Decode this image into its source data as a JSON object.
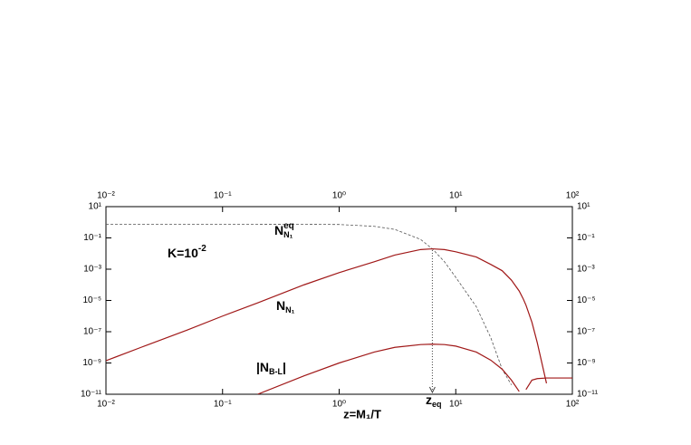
{
  "chart_data": {
    "type": "line",
    "x_label": "z=M₁/T",
    "log_x": true,
    "log_y": true,
    "xlim": [
      0.01,
      100
    ],
    "ylim": [
      1e-11,
      10
    ],
    "xticks": [
      {
        "value": 0.01,
        "label": "10⁻²"
      },
      {
        "value": 0.1,
        "label": "10⁻¹"
      },
      {
        "value": 1,
        "label": "10⁰"
      },
      {
        "value": 10,
        "label": "10¹"
      },
      {
        "value": 100,
        "label": "10²"
      }
    ],
    "yticks": [
      {
        "value": 10,
        "label": "10¹"
      },
      {
        "value": 0.1,
        "label": "10⁻¹"
      },
      {
        "value": 0.001,
        "label": "10⁻³"
      },
      {
        "value": 1e-05,
        "label": "10⁻⁵"
      },
      {
        "value": 1e-07,
        "label": "10⁻⁷"
      },
      {
        "value": 1e-09,
        "label": "10⁻⁹"
      },
      {
        "value": 1e-11,
        "label": "10⁻¹¹"
      }
    ],
    "x": [
      0.01,
      0.02,
      0.05,
      0.1,
      0.2,
      0.5,
      1,
      2,
      3,
      5,
      6.3,
      8,
      10,
      15,
      20,
      25,
      30,
      35,
      38,
      40,
      45,
      50,
      60,
      70,
      100
    ],
    "series": [
      {
        "name": "N_N1^eq",
        "color": "#555555",
        "dash": true,
        "values": [
          0.75,
          0.75,
          0.75,
          0.75,
          0.75,
          0.74,
          0.72,
          0.55,
          0.35,
          0.08,
          0.02,
          0.003,
          0.0003,
          4e-06,
          4e-08,
          4e-10,
          4e-11,
          null,
          null,
          null,
          null,
          null,
          null,
          null,
          null
        ]
      },
      {
        "name": "N_N1",
        "color": "#a01818",
        "dash": false,
        "values": [
          1.4e-09,
          1e-08,
          1.3e-07,
          1e-06,
          7e-06,
          0.0001,
          0.0006,
          0.003,
          0.008,
          0.018,
          0.02,
          0.018,
          0.013,
          0.006,
          0.002,
          0.0008,
          0.0002,
          4e-05,
          1.2e-05,
          5e-06,
          4e-07,
          2e-08,
          5e-11,
          null,
          null
        ]
      },
      {
        "name": "|N_B-L|",
        "color": "#a01818",
        "dash": false,
        "values": [
          null,
          null,
          null,
          null,
          1e-11,
          1.5e-10,
          1e-09,
          5e-09,
          1e-08,
          1.5e-08,
          1.6e-08,
          1.5e-08,
          1.2e-08,
          5e-09,
          1.5e-09,
          4e-10,
          8e-11,
          1.5e-11,
          null,
          2e-11,
          8e-11,
          1e-10,
          1.1e-10,
          1.1e-10,
          1.1e-10
        ]
      }
    ],
    "annotations": [
      {
        "text": "K=10",
        "sup": "-2"
      },
      {
        "text": "N",
        "sub": "N₁",
        "sup": "eq"
      },
      {
        "text": "N",
        "sub": "N₁"
      },
      {
        "text": "|N",
        "sub": "B-L",
        "tail": "|"
      },
      {
        "text": "z",
        "sub": "eq",
        "x": 6.3
      }
    ]
  }
}
